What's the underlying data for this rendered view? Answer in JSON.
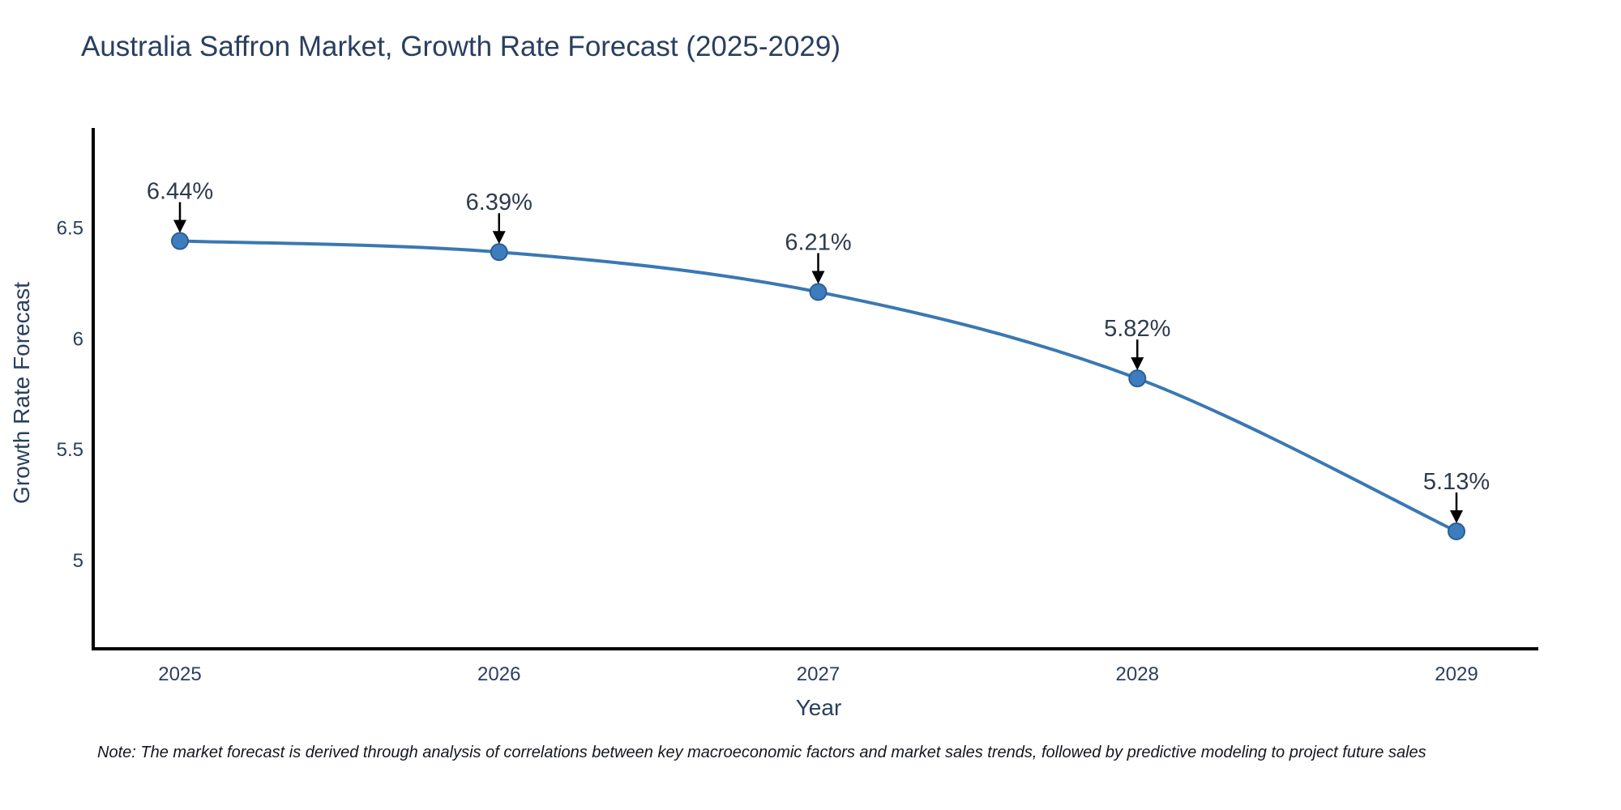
{
  "title": "Australia Saffron Market, Growth Rate Forecast (2025-2029)",
  "note": "Note: The market forecast is derived through analysis of correlations between key macroeconomic factors and market sales trends, followed by predictive modeling to project future sales",
  "chart_data": {
    "type": "line",
    "title": "Australia Saffron Market, Growth Rate Forecast (2025-2029)",
    "x": [
      "2025",
      "2026",
      "2027",
      "2028",
      "2029"
    ],
    "series": [
      {
        "name": "Growth Rate Forecast",
        "values": [
          6.44,
          6.39,
          6.21,
          5.82,
          5.13
        ]
      }
    ],
    "point_labels": [
      "6.44%",
      "6.39%",
      "6.21%",
      "5.82%",
      "5.13%"
    ],
    "xlabel": "Year",
    "ylabel": "Growth Rate Forecast",
    "yticks": [
      5,
      5.5,
      6,
      6.5
    ],
    "ylim": [
      4.6,
      6.95
    ],
    "grid": false,
    "legend": "none",
    "line_shape": "spline",
    "colors": {
      "line": "#3a78b2",
      "marker_fill": "#3e7dbd",
      "marker_edge": "#2c5f93",
      "axis": "#000000",
      "arrow": "#000000",
      "text": "#2a3f5f"
    }
  }
}
